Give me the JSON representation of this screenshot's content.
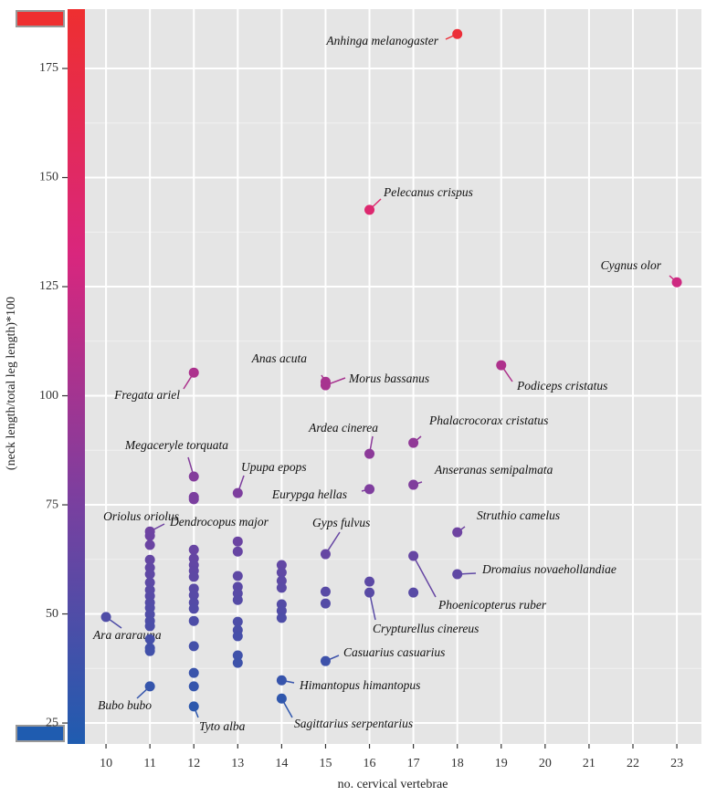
{
  "chart_data": {
    "type": "scatter",
    "x_label": "no. cervical vertebrae",
    "y_label": "(neck length/total leg length)*100",
    "xlim": [
      9.52,
      23.56
    ],
    "ylim": [
      20.2,
      188.6
    ],
    "xticks": [
      10,
      11,
      12,
      13,
      14,
      15,
      16,
      17,
      18,
      19,
      20,
      21,
      22,
      23
    ],
    "yticks": [
      25,
      50,
      75,
      100,
      125,
      150,
      175
    ],
    "grid": true,
    "colorscale": [
      "#1f5cb0",
      "#7b3f9f",
      "#d9267d",
      "#ee2f30"
    ],
    "series": [
      {
        "x": [
          18,
          16,
          23,
          19,
          12,
          15,
          15,
          16,
          17,
          12,
          13,
          12,
          16,
          17,
          18,
          11,
          15,
          17,
          18,
          16,
          10,
          15,
          14,
          11,
          14,
          12,
          11,
          11,
          11,
          11,
          11,
          11,
          11,
          11,
          11,
          11,
          11,
          11,
          11,
          11,
          11,
          11,
          12,
          12,
          12,
          12,
          12,
          12,
          12,
          12,
          12,
          12,
          12,
          12,
          12,
          12,
          13,
          13,
          13,
          13,
          13,
          13,
          13,
          13,
          13,
          13,
          13,
          14,
          14,
          14,
          14,
          14,
          14,
          14,
          15,
          15,
          16,
          17
        ],
        "values": [
          182.9,
          142.6,
          126.0,
          107.0,
          105.3,
          103.2,
          102.4,
          86.7,
          89.2,
          81.5,
          77.7,
          76.8,
          78.6,
          79.6,
          68.7,
          68.9,
          63.7,
          63.3,
          59.1,
          54.9,
          49.3,
          39.2,
          34.8,
          33.4,
          30.6,
          28.8,
          67.9,
          65.8,
          62.4,
          60.6,
          59.1,
          57.2,
          55.5,
          54.1,
          52.6,
          51.4,
          49.9,
          48.4,
          47.2,
          44.2,
          42.2,
          41.5,
          64.7,
          62.7,
          61.2,
          59.9,
          58.5,
          55.8,
          54.3,
          52.6,
          51.2,
          48.4,
          42.6,
          36.5,
          33.4,
          76.3,
          66.6,
          64.3,
          58.7,
          56.2,
          54.7,
          53.2,
          48.2,
          46.3,
          44.9,
          40.5,
          38.8,
          61.2,
          59.5,
          57.6,
          56.0,
          52.2,
          50.7,
          49.1,
          55.1,
          52.4,
          57.4,
          54.9
        ],
        "labels": [
          "Anhinga melanogaster",
          "Pelecanus crispus",
          "Cygnus olor",
          "Podiceps cristatus",
          "Fregata ariel",
          "Anas acuta",
          "Morus bassanus",
          "Ardea cinerea",
          "Phalacrocorax cristatus",
          "Megaceryle torquata",
          "Upupa epops",
          "Oriolus oriolus",
          "Eurypga hellas",
          "Anseranas semipalmata",
          "Struthio camelus",
          "Dendrocopus major",
          "Gyps fulvus",
          "Phoenicopterus ruber",
          "Dromaius novaehollandiae",
          "Crypturellus cinereus",
          "Ara ararauna",
          "Casuarius casuarius",
          "Himantopus himantopus",
          "Bubo bubo",
          "Sagittarius serpentarius",
          "Tyto alba",
          null,
          null,
          null,
          null,
          null,
          null,
          null,
          null,
          null,
          null,
          null,
          null,
          null,
          null,
          null,
          null,
          null,
          null,
          null,
          null,
          null,
          null,
          null,
          null,
          null,
          null,
          null,
          null,
          null,
          null,
          null,
          null,
          null,
          null,
          null,
          null,
          null,
          null,
          null,
          null,
          null,
          null,
          null,
          null,
          null,
          null,
          null,
          null,
          null,
          null,
          null,
          null
        ]
      }
    ]
  }
}
